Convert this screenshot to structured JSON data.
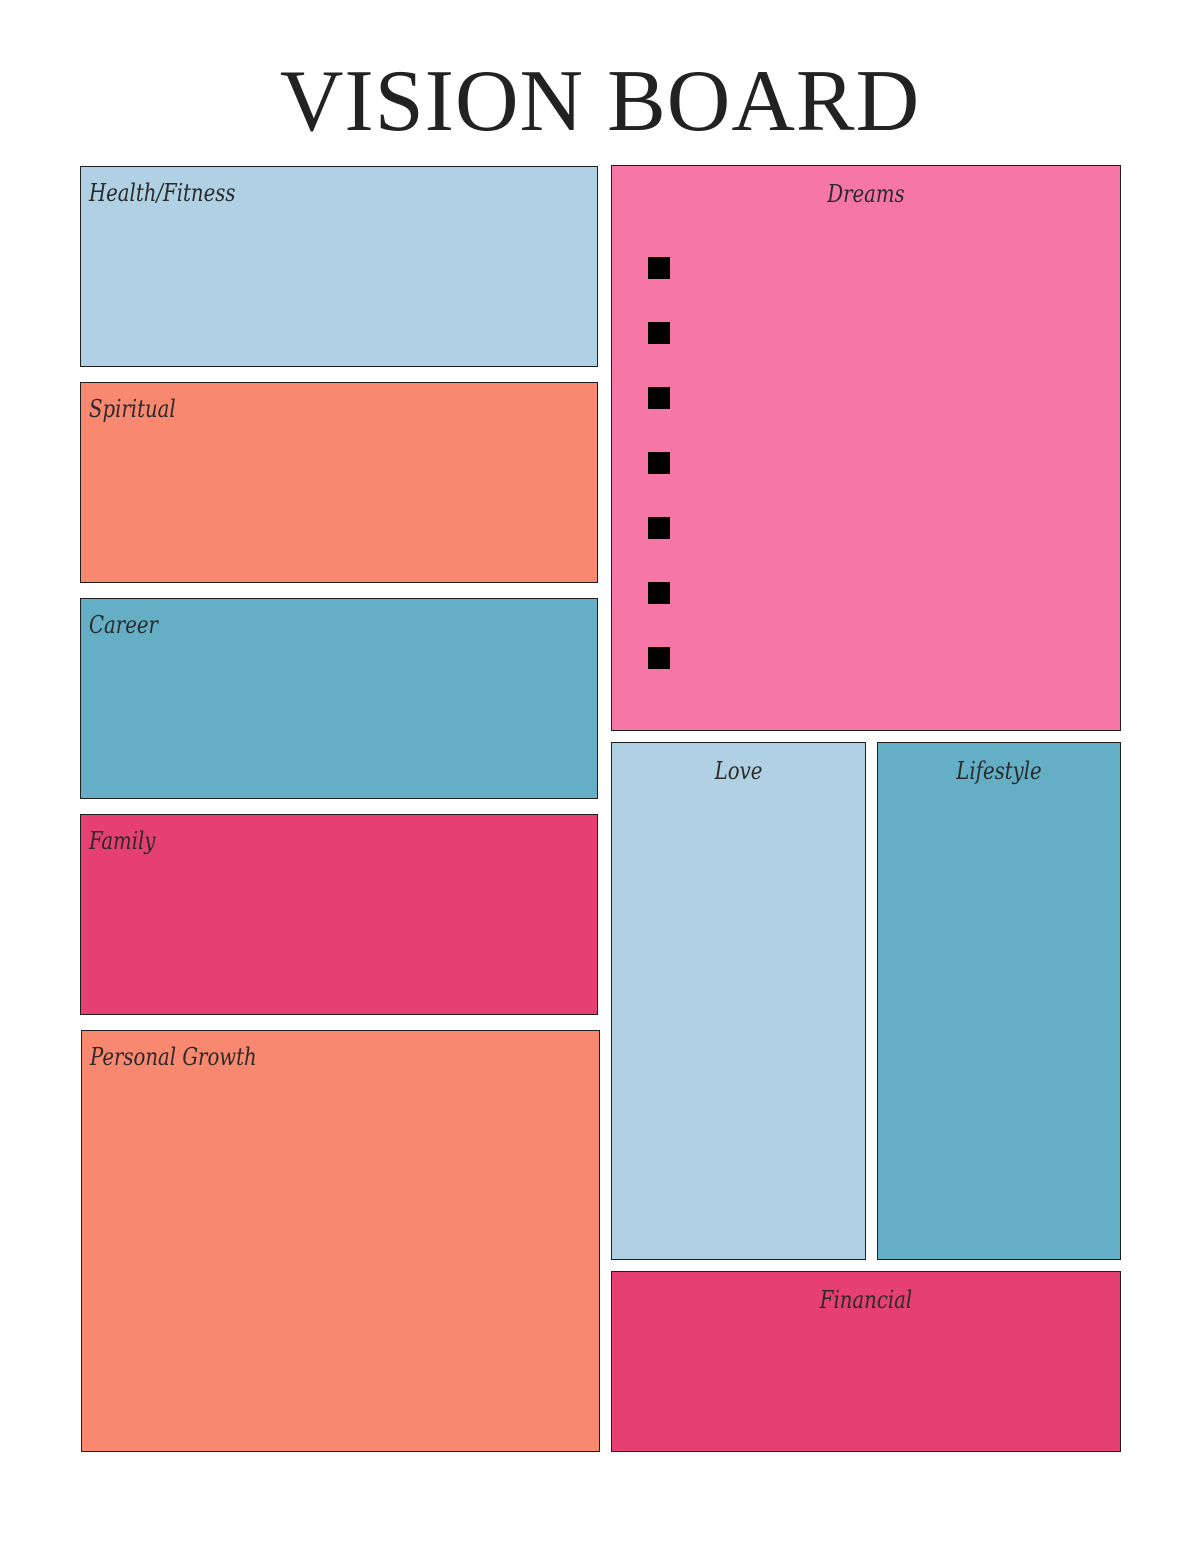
{
  "title": "VISION BOARD",
  "colors": {
    "light_blue": "#afd1e3",
    "salmon": "#f98870",
    "teal": "#64aec6",
    "raspberry": "#e64073",
    "pink": "#f677a6",
    "border": "#1f1f1f"
  },
  "sections": {
    "health": {
      "label": "Health/Fitness"
    },
    "spiritual": {
      "label": "Spiritual"
    },
    "career": {
      "label": "Career"
    },
    "family": {
      "label": "Family"
    },
    "growth": {
      "label": "Personal Growth"
    },
    "dreams": {
      "label": "Dreams",
      "bullet_count": 7
    },
    "love": {
      "label": "Love"
    },
    "lifestyle": {
      "label": "Lifestyle"
    },
    "financial": {
      "label": "Financial"
    }
  }
}
